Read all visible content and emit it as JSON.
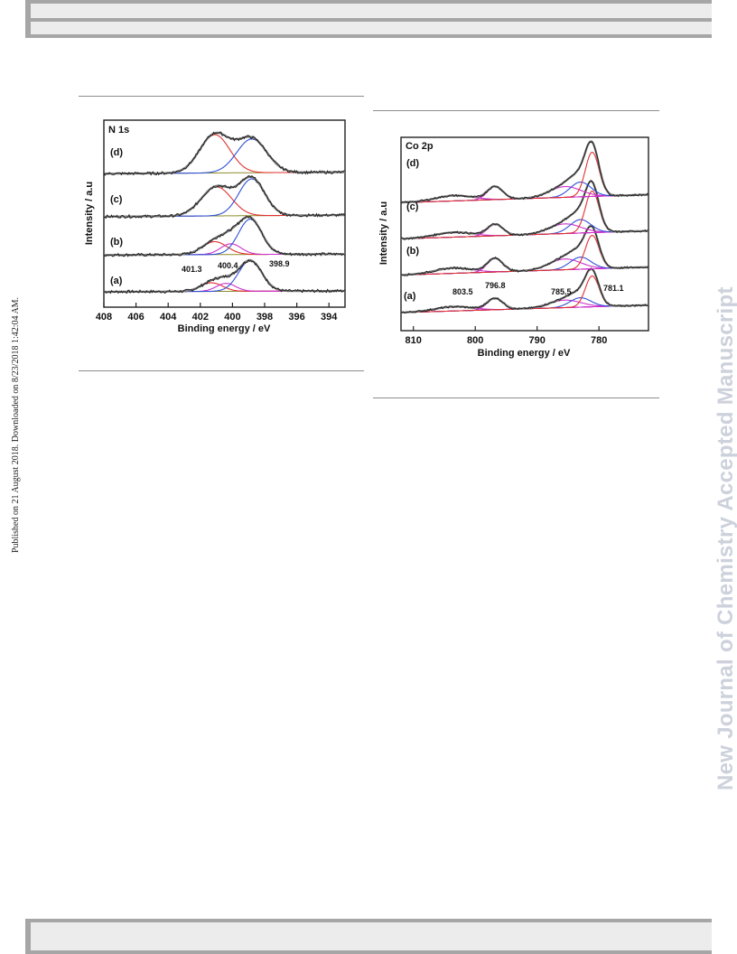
{
  "page": {
    "side_note": "Published on 21 August 2018. Downloaded on 8/23/2018 1:42:04 AM.",
    "watermark": "New Journal of Chemistry Accepted Manuscript"
  },
  "chart_data": [
    {
      "type": "line",
      "panel_label": "N 1s",
      "xlabel": "Binding energy / eV",
      "ylabel": "Intensity / a.u",
      "xlim": [
        408,
        393
      ],
      "x_reversed": true,
      "x_ticks": [
        408,
        406,
        404,
        402,
        400,
        398,
        396,
        394
      ],
      "y_ticks_shown": false,
      "grid": false,
      "legend": "none",
      "curve_colors": {
        "data": "#222222",
        "envelope": "#7a7a7a",
        "background": "#8c8c2a",
        "c1": "#e23030",
        "c2": "#cc30cc",
        "c3": "#3050d8"
      },
      "series": [
        {
          "label": "(a)",
          "offset": 0.0,
          "background_rise": 0.03,
          "components": [
            {
              "center": 401.3,
              "height": 0.28,
              "fwhm": 1.6
            },
            {
              "center": 400.4,
              "height": 0.26,
              "fwhm": 1.4
            },
            {
              "center": 398.9,
              "height": 1.0,
              "fwhm": 1.7
            }
          ]
        },
        {
          "label": "(b)",
          "offset": 1.2,
          "background_rise": 0.03,
          "components": [
            {
              "center": 401.1,
              "height": 0.42,
              "fwhm": 1.8
            },
            {
              "center": 400.1,
              "height": 0.35,
              "fwhm": 1.5
            },
            {
              "center": 398.9,
              "height": 1.15,
              "fwhm": 1.7
            }
          ]
        },
        {
          "label": "(c)",
          "offset": 2.45,
          "background_rise": 0.05,
          "components": [
            {
              "center": 401.0,
              "height": 0.95,
              "fwhm": 2.2
            },
            {
              "center": 398.8,
              "height": 1.2,
              "fwhm": 1.9
            }
          ]
        },
        {
          "label": "(d)",
          "offset": 3.85,
          "background_rise": 0.05,
          "components": [
            {
              "center": 401.1,
              "height": 1.25,
              "fwhm": 2.2
            },
            {
              "center": 398.8,
              "height": 1.1,
              "fwhm": 2.2
            }
          ]
        }
      ],
      "annotations": [
        "401.3",
        "400.4",
        "398.9"
      ]
    },
    {
      "type": "line",
      "panel_label": "Co 2p",
      "xlabel": "Binding energy / eV",
      "ylabel": "Intensity / a.u",
      "xlim": [
        812,
        772
      ],
      "x_reversed": true,
      "x_ticks": [
        810,
        800,
        790,
        780
      ],
      "y_ticks_shown": false,
      "grid": false,
      "legend": "none",
      "curve_colors": {
        "data": "#222222",
        "envelope": "#7a7a7a",
        "background": "#a040b0",
        "main": "#e23030",
        "shoulder": "#3050d8",
        "satellite": "#cc30cc"
      },
      "series": [
        {
          "label": "(a)",
          "offset": 0.0,
          "background_rise": 0.28,
          "components": [
            {
              "center": 803.5,
              "height": 0.16,
              "fwhm": 7.0
            },
            {
              "center": 796.8,
              "height": 0.42,
              "fwhm": 3.0
            },
            {
              "center": 785.5,
              "height": 0.28,
              "fwhm": 6.0
            },
            {
              "center": 783.0,
              "height": 0.35,
              "fwhm": 4.0
            },
            {
              "center": 781.1,
              "height": 1.15,
              "fwhm": 2.6
            }
          ]
        },
        {
          "label": "(b)",
          "offset": 1.4,
          "background_rise": 0.3,
          "components": [
            {
              "center": 803.5,
              "height": 0.2,
              "fwhm": 7.0
            },
            {
              "center": 796.8,
              "height": 0.5,
              "fwhm": 3.0
            },
            {
              "center": 785.5,
              "height": 0.4,
              "fwhm": 6.0
            },
            {
              "center": 783.0,
              "height": 0.45,
              "fwhm": 4.0
            },
            {
              "center": 781.1,
              "height": 1.25,
              "fwhm": 2.6
            }
          ]
        },
        {
          "label": "(c)",
          "offset": 2.75,
          "background_rise": 0.3,
          "components": [
            {
              "center": 803.5,
              "height": 0.18,
              "fwhm": 7.0
            },
            {
              "center": 796.8,
              "height": 0.42,
              "fwhm": 3.0
            },
            {
              "center": 785.5,
              "height": 0.36,
              "fwhm": 6.0
            },
            {
              "center": 783.0,
              "height": 0.5,
              "fwhm": 4.0
            },
            {
              "center": 781.1,
              "height": 1.55,
              "fwhm": 2.6
            }
          ]
        },
        {
          "label": "(d)",
          "offset": 4.1,
          "background_rise": 0.3,
          "components": [
            {
              "center": 803.5,
              "height": 0.2,
              "fwhm": 7.0
            },
            {
              "center": 796.8,
              "height": 0.48,
              "fwhm": 3.0
            },
            {
              "center": 785.5,
              "height": 0.4,
              "fwhm": 6.0
            },
            {
              "center": 783.0,
              "height": 0.55,
              "fwhm": 4.0
            },
            {
              "center": 781.1,
              "height": 1.65,
              "fwhm": 2.6
            }
          ]
        }
      ],
      "annotations": [
        "803.5",
        "796.8",
        "785.5",
        "781.1"
      ]
    }
  ]
}
